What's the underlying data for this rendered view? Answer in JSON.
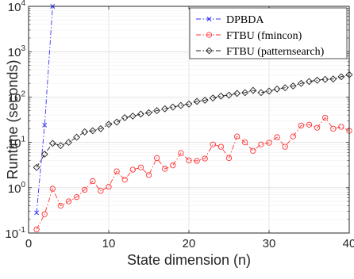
{
  "chart_data": {
    "type": "line",
    "title": "",
    "xlabel": "State dimension (n)",
    "ylabel": "Runtime (seconds)",
    "xlim": [
      0,
      40
    ],
    "ylim": [
      0.1,
      10000
    ],
    "yscale": "log",
    "grid": true,
    "legend": "top-right",
    "x_ticks": [
      0,
      10,
      20,
      30,
      40
    ],
    "y_ticks": [
      {
        "value": 0.1,
        "base": "10",
        "exp": "-1"
      },
      {
        "value": 1,
        "base": "10",
        "exp": "0"
      },
      {
        "value": 10,
        "base": "10",
        "exp": "1"
      },
      {
        "value": 100,
        "base": "10",
        "exp": "2"
      },
      {
        "value": 1000,
        "base": "10",
        "exp": "3"
      },
      {
        "value": 10000,
        "base": "10",
        "exp": "4"
      }
    ],
    "series": [
      {
        "name": "DPBDA",
        "color": "#3333ff",
        "marker": "x",
        "line": "dash-dot",
        "x": [
          1,
          2,
          3
        ],
        "y": [
          0.28,
          24,
          10000
        ]
      },
      {
        "name": "FTBU (fmincon)",
        "color": "#ff3333",
        "marker": "circle",
        "line": "dash-dot",
        "x": [
          1,
          2,
          3,
          4,
          5,
          6,
          7,
          8,
          9,
          10,
          11,
          12,
          13,
          14,
          15,
          16,
          17,
          18,
          19,
          20,
          21,
          22,
          23,
          24,
          25,
          26,
          27,
          28,
          29,
          30,
          31,
          32,
          33,
          34,
          35,
          36,
          37,
          38,
          39,
          40
        ],
        "y": [
          0.12,
          0.26,
          0.95,
          0.4,
          0.5,
          0.62,
          0.9,
          1.4,
          0.85,
          1.05,
          2.3,
          1.5,
          2.5,
          2.8,
          1.9,
          4.5,
          2.6,
          3.1,
          5.8,
          4.0,
          3.9,
          4.4,
          9.0,
          8.0,
          4.5,
          13.5,
          10.0,
          6.5,
          9.0,
          9.8,
          13.0,
          8.0,
          13.5,
          23.5,
          24.5,
          21.0,
          35.0,
          20.0,
          22.0,
          18.0
        ]
      },
      {
        "name": "FTBU (patternsearch)",
        "color": "#222222",
        "marker": "diamond",
        "line": "dash-dot",
        "x": [
          1,
          2,
          3,
          4,
          5,
          6,
          7,
          8,
          9,
          10,
          11,
          12,
          13,
          14,
          15,
          16,
          17,
          18,
          19,
          20,
          21,
          22,
          23,
          24,
          25,
          26,
          27,
          28,
          29,
          30,
          31,
          32,
          33,
          34,
          35,
          36,
          37,
          38,
          39,
          40
        ],
        "y": [
          2.8,
          5.5,
          9.5,
          8.5,
          10.0,
          13.0,
          17.0,
          18.0,
          20.0,
          25.0,
          28.0,
          35.0,
          38.0,
          42.0,
          45.0,
          50.0,
          55.0,
          60.0,
          65.0,
          70.0,
          80.0,
          85.0,
          95.0,
          105.0,
          110.0,
          120.0,
          125.0,
          140.0,
          125.0,
          135.0,
          150.0,
          160.0,
          175.0,
          200.0,
          220.0,
          235.0,
          245.0,
          250.0,
          280.0,
          310.0
        ]
      }
    ]
  }
}
